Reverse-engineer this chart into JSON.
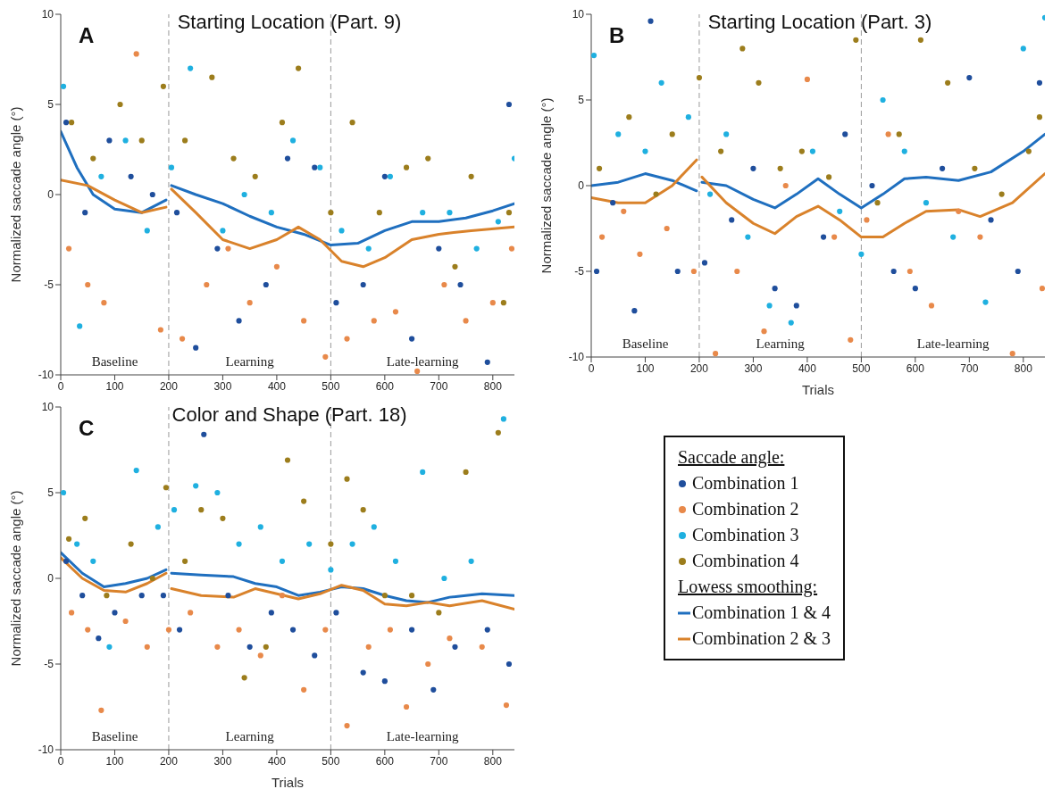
{
  "chart_data": [
    {
      "type": "scatter",
      "title": "Starting Location (Part. 9)",
      "ylabel": "Normalized saccade angle (°)",
      "xlim": [
        0,
        840
      ],
      "xticks": [
        0,
        100,
        200,
        300,
        400,
        500,
        600,
        700,
        800
      ],
      "ylim": [
        -10,
        10
      ],
      "yticks": [
        -10,
        -5,
        0,
        5,
        10
      ],
      "marker": "circle",
      "line_style": "solid",
      "legend": false,
      "annotations": [
        "A",
        "Baseline",
        "Learning",
        "Late-learning"
      ],
      "ref_lines": [
        {
          "axis": "x",
          "value": 200,
          "color": "#999999",
          "line_style": "dashed"
        },
        {
          "axis": "x",
          "value": 500,
          "color": "#999999",
          "line_style": "dashed"
        }
      ],
      "series": [
        {
          "color": "#1f4e9c",
          "x": [
            10,
            45,
            90,
            130,
            170,
            215,
            250,
            290,
            330,
            380,
            420,
            470,
            510,
            560,
            600,
            650,
            700,
            740,
            790,
            830
          ],
          "values": [
            4,
            -1,
            3,
            1,
            0,
            -1,
            -8.5,
            -3,
            -7,
            -5,
            2,
            1.5,
            -6,
            -5,
            1,
            -8,
            -3,
            -5,
            -9.3,
            5
          ]
        },
        {
          "color": "#e8894a",
          "x": [
            15,
            50,
            80,
            140,
            185,
            225,
            270,
            310,
            350,
            400,
            450,
            490,
            530,
            580,
            620,
            660,
            710,
            750,
            800,
            835
          ],
          "values": [
            -3,
            -5,
            -6,
            7.8,
            -7.5,
            -8,
            -5,
            -3,
            -6,
            -4,
            -7,
            -9,
            -8,
            -7,
            -6.5,
            -9.8,
            -5,
            -7,
            -6,
            -3
          ]
        },
        {
          "color": "#1fb0e0",
          "x": [
            5,
            35,
            75,
            120,
            160,
            205,
            240,
            300,
            340,
            390,
            430,
            480,
            520,
            570,
            610,
            670,
            720,
            770,
            810,
            840
          ],
          "values": [
            6,
            -7.3,
            1,
            3,
            -2,
            1.5,
            7,
            -2,
            0,
            -1,
            3,
            1.5,
            -2,
            -3,
            1,
            -1,
            -1,
            -3,
            -1.5,
            2
          ]
        },
        {
          "color": "#9c7d1c",
          "x": [
            20,
            60,
            110,
            150,
            190,
            230,
            280,
            320,
            360,
            410,
            440,
            500,
            540,
            590,
            640,
            680,
            730,
            760,
            820,
            830
          ],
          "values": [
            4,
            2,
            5,
            3,
            6,
            3,
            6.5,
            2,
            1,
            4,
            7,
            -1,
            4,
            -1,
            1.5,
            2,
            -4,
            1,
            -6,
            -1
          ]
        },
        {
          "type": "line",
          "marker": "none",
          "color": "#1f6fbf",
          "x": [
            0,
            30,
            60,
            100,
            150,
            195,
            198,
            205,
            250,
            300,
            350,
            400,
            450,
            500,
            550,
            600,
            650,
            700,
            750,
            800,
            840
          ],
          "values": [
            3.5,
            1.5,
            0,
            -0.8,
            -1,
            -0.3,
            null,
            0.5,
            0,
            -0.5,
            -1.2,
            -1.8,
            -2.2,
            -2.8,
            -2.7,
            -2,
            -1.5,
            -1.5,
            -1.3,
            -0.9,
            -0.5
          ]
        },
        {
          "type": "line",
          "marker": "none",
          "color": "#d9822b",
          "x": [
            0,
            50,
            100,
            150,
            195,
            198,
            205,
            250,
            300,
            350,
            400,
            440,
            480,
            520,
            560,
            600,
            650,
            700,
            760,
            840
          ],
          "values": [
            0.8,
            0.5,
            -0.3,
            -1,
            -0.7,
            null,
            0.3,
            -1,
            -2.5,
            -3,
            -2.5,
            -1.8,
            -2.5,
            -3.7,
            -4,
            -3.5,
            -2.5,
            -2.2,
            -2,
            -1.8
          ]
        }
      ]
    },
    {
      "type": "scatter",
      "title": "Starting Location (Part. 3)",
      "xlabel": "Trials",
      "ylabel": "Normalized saccade angle (°)",
      "xlim": [
        0,
        840
      ],
      "xticks": [
        0,
        100,
        200,
        300,
        400,
        500,
        600,
        700,
        800
      ],
      "ylim": [
        -10,
        10
      ],
      "yticks": [
        -10,
        -5,
        0,
        5,
        10
      ],
      "marker": "circle",
      "line_style": "solid",
      "legend": false,
      "annotations": [
        "B",
        "Baseline",
        "Learning",
        "Late-learning"
      ],
      "ref_lines": [
        {
          "axis": "x",
          "value": 200,
          "color": "#999999",
          "line_style": "dashed"
        },
        {
          "axis": "x",
          "value": 500,
          "color": "#999999",
          "line_style": "dashed"
        }
      ],
      "series": [
        {
          "color": "#1f4e9c",
          "x": [
            10,
            40,
            80,
            110,
            160,
            210,
            260,
            300,
            340,
            380,
            430,
            470,
            520,
            560,
            600,
            650,
            700,
            740,
            790,
            830
          ],
          "values": [
            -5,
            -1,
            -7.3,
            9.6,
            -5,
            -4.5,
            -2,
            1,
            -6,
            -7,
            -3,
            3,
            0,
            -5,
            -6,
            1,
            6.3,
            -2,
            -5,
            6
          ]
        },
        {
          "color": "#e8894a",
          "x": [
            20,
            60,
            90,
            140,
            190,
            230,
            270,
            320,
            360,
            400,
            450,
            480,
            510,
            550,
            590,
            630,
            680,
            720,
            780,
            835
          ],
          "values": [
            -3,
            -1.5,
            -4,
            -2.5,
            -5,
            -9.8,
            -5,
            -8.5,
            0,
            6.2,
            -3,
            -9,
            -2,
            3,
            -5,
            -7,
            -1.5,
            -3,
            -9.8,
            -6
          ]
        },
        {
          "color": "#1fb0e0",
          "x": [
            5,
            50,
            100,
            130,
            180,
            220,
            250,
            290,
            330,
            370,
            410,
            460,
            500,
            540,
            580,
            620,
            670,
            730,
            800,
            840
          ],
          "values": [
            7.6,
            3,
            2,
            6,
            4,
            -0.5,
            3,
            -3,
            -7,
            -8,
            2,
            -1.5,
            -4,
            5,
            2,
            -1,
            -3,
            -6.8,
            8,
            9.8
          ]
        },
        {
          "color": "#9c7d1c",
          "x": [
            15,
            70,
            120,
            150,
            200,
            240,
            280,
            310,
            350,
            390,
            440,
            490,
            530,
            570,
            610,
            660,
            710,
            760,
            810,
            830
          ],
          "values": [
            1,
            4,
            -0.5,
            3,
            6.3,
            2,
            8,
            6,
            1,
            2,
            0.5,
            8.5,
            -1,
            3,
            8.5,
            6,
            1,
            -0.5,
            2,
            4
          ]
        },
        {
          "type": "line",
          "marker": "none",
          "color": "#1f6fbf",
          "x": [
            0,
            50,
            100,
            150,
            195,
            198,
            205,
            250,
            300,
            340,
            380,
            420,
            460,
            500,
            540,
            580,
            620,
            680,
            740,
            800,
            840
          ],
          "values": [
            0,
            0.2,
            0.7,
            0.3,
            -0.3,
            null,
            0.2,
            0,
            -0.8,
            -1.3,
            -0.5,
            0.4,
            -0.5,
            -1.3,
            -0.5,
            0.4,
            0.5,
            0.3,
            0.8,
            2,
            3
          ]
        },
        {
          "type": "line",
          "marker": "none",
          "color": "#d9822b",
          "x": [
            0,
            50,
            100,
            150,
            195,
            198,
            205,
            250,
            300,
            340,
            380,
            420,
            460,
            500,
            540,
            580,
            620,
            680,
            720,
            780,
            840
          ],
          "values": [
            -0.7,
            -1,
            -1,
            0,
            1.5,
            null,
            0.5,
            -1,
            -2.2,
            -2.8,
            -1.8,
            -1.2,
            -2,
            -3,
            -3,
            -2.2,
            -1.5,
            -1.4,
            -1.8,
            -1,
            0.7
          ]
        }
      ]
    },
    {
      "type": "scatter",
      "title": "Color and Shape (Part. 18)",
      "xlabel": "Trials",
      "ylabel": "Normalized saccade angle (°)",
      "xlim": [
        0,
        840
      ],
      "xticks": [
        0,
        100,
        200,
        300,
        400,
        500,
        600,
        700,
        800
      ],
      "ylim": [
        -10,
        10
      ],
      "yticks": [
        -10,
        -5,
        0,
        5,
        10
      ],
      "marker": "circle",
      "line_style": "solid",
      "legend": "right",
      "legend_title": "Saccade angle:",
      "annotations": [
        "C",
        "Baseline",
        "Learning",
        "Late-learning",
        "Lowess smoothing:"
      ],
      "ref_lines": [
        {
          "axis": "x",
          "value": 200,
          "color": "#999999",
          "line_style": "dashed"
        },
        {
          "axis": "x",
          "value": 500,
          "color": "#999999",
          "line_style": "dashed"
        }
      ],
      "series": [
        {
          "name": "Combination 1",
          "color": "#1f4e9c",
          "x": [
            10,
            40,
            70,
            100,
            150,
            190,
            220,
            265,
            310,
            350,
            390,
            430,
            470,
            510,
            560,
            600,
            650,
            690,
            730,
            790,
            830
          ],
          "values": [
            1,
            -1,
            -3.5,
            -2,
            -1,
            -1,
            -3,
            8.4,
            -1,
            -4,
            -2,
            -3,
            -4.5,
            -2,
            -5.5,
            -6,
            -3,
            -6.5,
            -4,
            -3,
            -5
          ]
        },
        {
          "name": "Combination 2",
          "color": "#e8894a",
          "x": [
            20,
            50,
            75,
            120,
            160,
            200,
            240,
            290,
            330,
            370,
            410,
            450,
            490,
            530,
            570,
            610,
            640,
            680,
            720,
            780,
            825
          ],
          "values": [
            -2,
            -3,
            -7.7,
            -2.5,
            -4,
            -3,
            -2,
            -4,
            -3,
            -4.5,
            -1,
            -6.5,
            -3,
            -8.6,
            -4,
            -3,
            -7.5,
            -5,
            -3.5,
            -4,
            -7.4
          ]
        },
        {
          "name": "Combination 3",
          "color": "#1fb0e0",
          "x": [
            5,
            30,
            60,
            90,
            140,
            180,
            210,
            250,
            290,
            330,
            370,
            410,
            460,
            500,
            540,
            580,
            620,
            670,
            710,
            760,
            820
          ],
          "values": [
            5,
            2,
            1,
            -4,
            6.3,
            3,
            4,
            5.4,
            5,
            2,
            3,
            1,
            2,
            0.5,
            2,
            3,
            1,
            6.2,
            0,
            1,
            9.3
          ]
        },
        {
          "name": "Combination 4",
          "color": "#9c7d1c",
          "x": [
            15,
            45,
            85,
            130,
            170,
            195,
            230,
            260,
            300,
            340,
            380,
            420,
            450,
            500,
            530,
            560,
            600,
            650,
            700,
            750,
            810
          ],
          "values": [
            2.3,
            3.5,
            -1,
            2,
            0,
            5.3,
            1,
            4,
            3.5,
            -5.8,
            -4,
            6.9,
            4.5,
            2,
            5.8,
            4,
            -1,
            -1,
            -2,
            6.2,
            8.5
          ]
        },
        {
          "type": "line",
          "marker": "none",
          "name": "Combination 1 & 4",
          "color": "#1f6fbf",
          "x": [
            0,
            40,
            80,
            120,
            160,
            195,
            198,
            205,
            260,
            320,
            360,
            400,
            440,
            480,
            520,
            560,
            600,
            640,
            680,
            720,
            780,
            840
          ],
          "values": [
            1.5,
            0.3,
            -0.5,
            -0.3,
            0,
            0.5,
            null,
            0.3,
            0.2,
            0.1,
            -0.3,
            -0.5,
            -1,
            -0.8,
            -0.5,
            -0.6,
            -1,
            -1.3,
            -1.4,
            -1.1,
            -0.9,
            -1
          ]
        },
        {
          "type": "line",
          "marker": "none",
          "name": "Combination 2 & 3",
          "color": "#d9822b",
          "x": [
            0,
            40,
            80,
            120,
            160,
            195,
            198,
            205,
            260,
            320,
            360,
            400,
            440,
            480,
            520,
            560,
            600,
            640,
            680,
            720,
            780,
            840
          ],
          "values": [
            1.2,
            0,
            -0.7,
            -0.8,
            -0.3,
            0.3,
            null,
            -0.6,
            -1,
            -1.1,
            -0.6,
            -0.9,
            -1.2,
            -0.9,
            -0.4,
            -0.7,
            -1.5,
            -1.6,
            -1.4,
            -1.6,
            -1.3,
            -1.8
          ]
        }
      ]
    }
  ]
}
